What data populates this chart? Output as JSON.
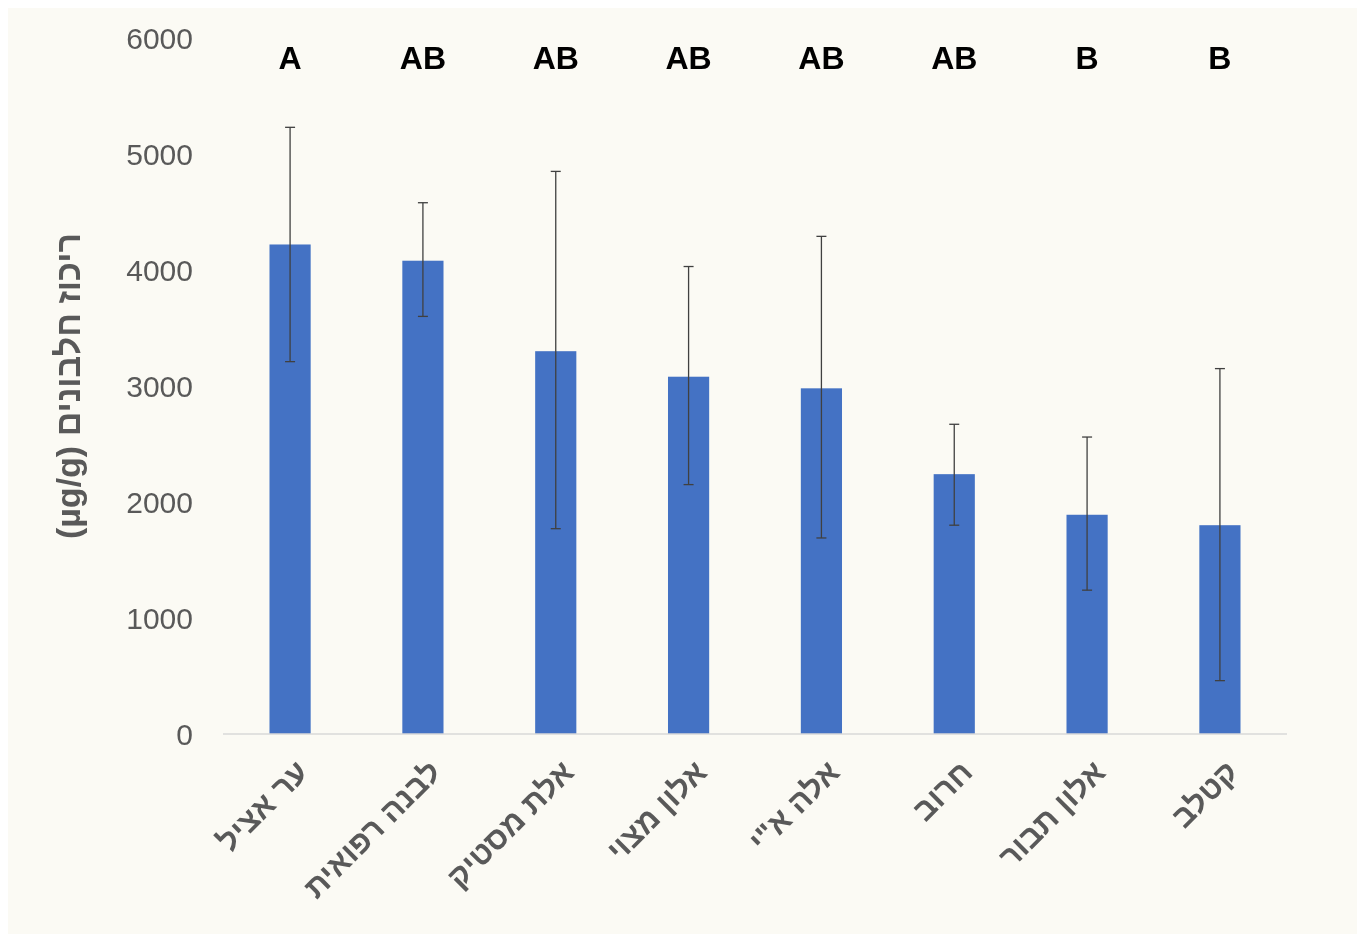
{
  "chart_data": {
    "type": "bar",
    "ylabel": "ריכוז חלבונים (µg/g)",
    "categories": [
      "ער אציל",
      "לבנה רפואית",
      "אלת מסטיק",
      "אלון מצוי",
      "אלה א\"י",
      "חרוב",
      "אלון תבור",
      "קטלב"
    ],
    "values": [
      4220,
      4080,
      3300,
      3080,
      2980,
      2240,
      1890,
      1800
    ],
    "errors": [
      [
        3210,
        5230
      ],
      [
        3600,
        4580
      ],
      [
        1770,
        4850
      ],
      [
        2150,
        4030
      ],
      [
        1690,
        4290
      ],
      [
        1800,
        2670
      ],
      [
        1240,
        2560
      ],
      [
        460,
        3150
      ]
    ],
    "color": "#4472c4",
    "ylim": [
      0,
      6000
    ],
    "yticks": [
      0,
      1000,
      2000,
      3000,
      4000,
      5000,
      6000
    ],
    "grid": false,
    "annotations": [
      "A",
      "AB",
      "AB",
      "AB",
      "AB",
      "AB",
      "B",
      "B"
    ]
  }
}
